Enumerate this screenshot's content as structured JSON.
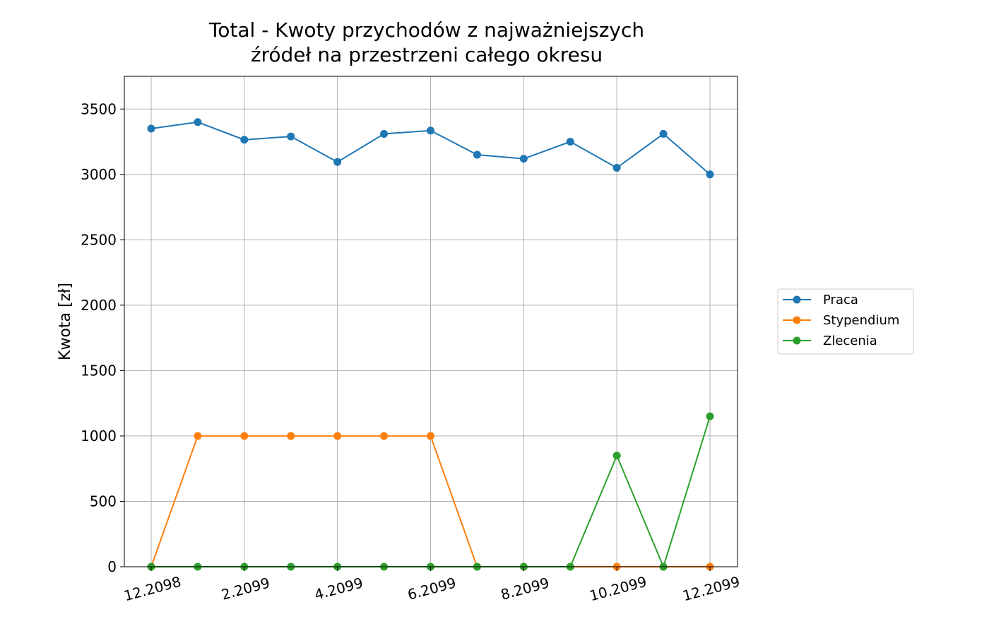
{
  "chart_data": {
    "type": "line",
    "title": "Total - Kwoty przychodów z najważniejszych\nźródeł na przestrzeni całego okresu",
    "title_lines": [
      "Total - Kwoty przychodów z najważniejszych",
      "źródeł na przestrzeni całego okresu"
    ],
    "xlabel": "",
    "ylabel": "Kwota [zł]",
    "x": [
      "12.2098",
      "1.2099",
      "2.2099",
      "3.2099",
      "4.2099",
      "5.2099",
      "6.2099",
      "7.2099",
      "8.2099",
      "9.2099",
      "10.2099",
      "11.2099",
      "12.2099"
    ],
    "xticks": [
      "12.2098",
      "2.2099",
      "4.2099",
      "6.2099",
      "8.2099",
      "10.2099",
      "12.2099"
    ],
    "ylim": [
      0,
      3750
    ],
    "yticks": [
      0,
      500,
      1000,
      1500,
      2000,
      2500,
      3000,
      3500
    ],
    "grid": true,
    "legend_position": "right",
    "series": [
      {
        "name": "Praca",
        "color": "#1f77b4",
        "values": [
          3350,
          3400,
          3265,
          3290,
          3095,
          3310,
          3335,
          3150,
          3120,
          3250,
          3050,
          3310,
          3000
        ]
      },
      {
        "name": "Stypendium",
        "color": "#ff7f0e",
        "values": [
          0,
          1000,
          1000,
          1000,
          1000,
          1000,
          1000,
          0,
          0,
          0,
          0,
          0,
          0
        ]
      },
      {
        "name": "Zlecenia",
        "color": "#2ca02c",
        "values": [
          0,
          0,
          0,
          0,
          0,
          0,
          0,
          0,
          0,
          0,
          850,
          0,
          1150
        ]
      }
    ]
  }
}
